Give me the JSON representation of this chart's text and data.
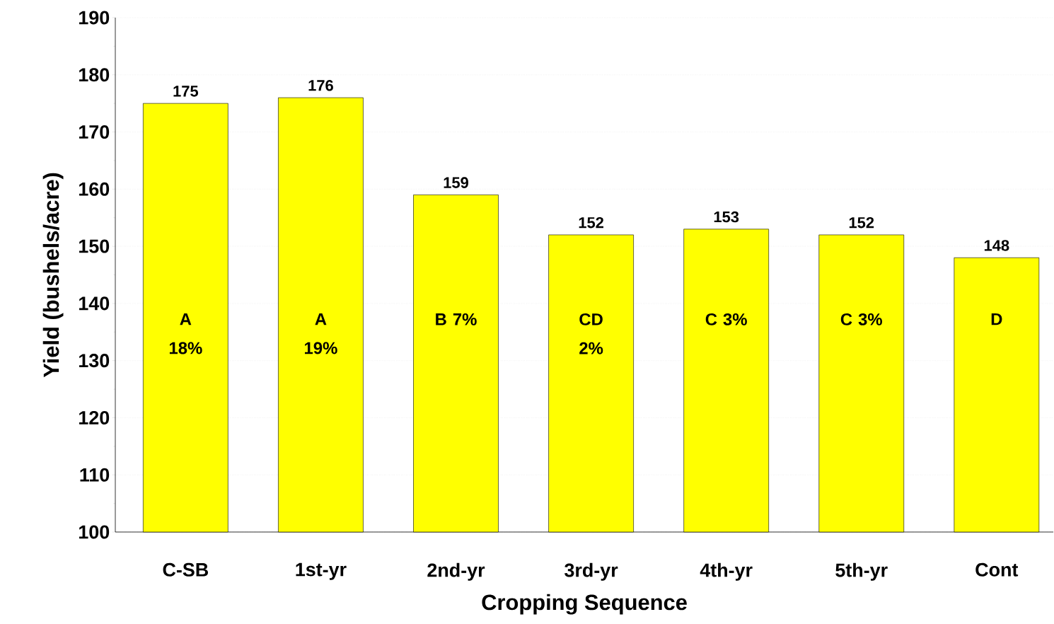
{
  "chart_data": {
    "type": "bar",
    "xlabel": "Cropping Sequence",
    "ylabel": "Yield (bushels/acre)",
    "categories": [
      "C-SB",
      "1st-yr",
      "2nd-yr",
      "3rd-yr",
      "4th-yr",
      "5th-yr",
      "Cont"
    ],
    "values": [
      175,
      176,
      159,
      152,
      153,
      152,
      148
    ],
    "color": "#ffff00",
    "ylim": [
      100,
      190
    ],
    "yticks": [
      100,
      110,
      120,
      130,
      140,
      150,
      160,
      170,
      180,
      190
    ],
    "grid": "y",
    "data_labels": true,
    "annotations": [
      "A 18%",
      "A 19%",
      "B 7%",
      "CD 2%",
      "C 3%",
      "C 3%",
      "D"
    ]
  }
}
